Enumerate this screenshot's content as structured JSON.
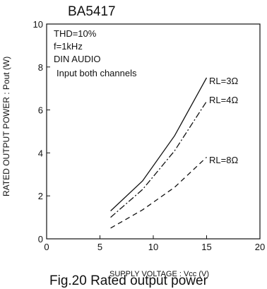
{
  "chart_data": {
    "type": "line",
    "title": "BA5417",
    "xlabel": "SUPPLY VOLTAGE : Vcc (V)",
    "ylabel": "RATED OUTPUT POWER : Pout (W)",
    "caption": "Fig.20 Rated output power",
    "xlim": [
      0,
      20
    ],
    "ylim": [
      0,
      10
    ],
    "x_ticks": [
      "0",
      "5",
      "10",
      "15",
      "20"
    ],
    "y_ticks": [
      "0",
      "2",
      "4",
      "6",
      "8",
      "10"
    ],
    "grid": false,
    "annotations": [
      "THD=10%",
      "f=1kHz",
      "DIN AUDIO",
      "Input both channels"
    ],
    "series": [
      {
        "name": "RL=3Ω",
        "style": "solid",
        "x": [
          6,
          9,
          12,
          15
        ],
        "y": [
          1.3,
          2.7,
          4.8,
          7.5
        ]
      },
      {
        "name": "RL=4Ω",
        "style": "dashdot",
        "x": [
          6,
          9,
          12,
          15
        ],
        "y": [
          1.0,
          2.3,
          4.1,
          6.4
        ]
      },
      {
        "name": "RL=8Ω",
        "style": "dashed",
        "x": [
          6,
          9,
          12,
          15
        ],
        "y": [
          0.5,
          1.35,
          2.4,
          3.8
        ]
      }
    ]
  }
}
